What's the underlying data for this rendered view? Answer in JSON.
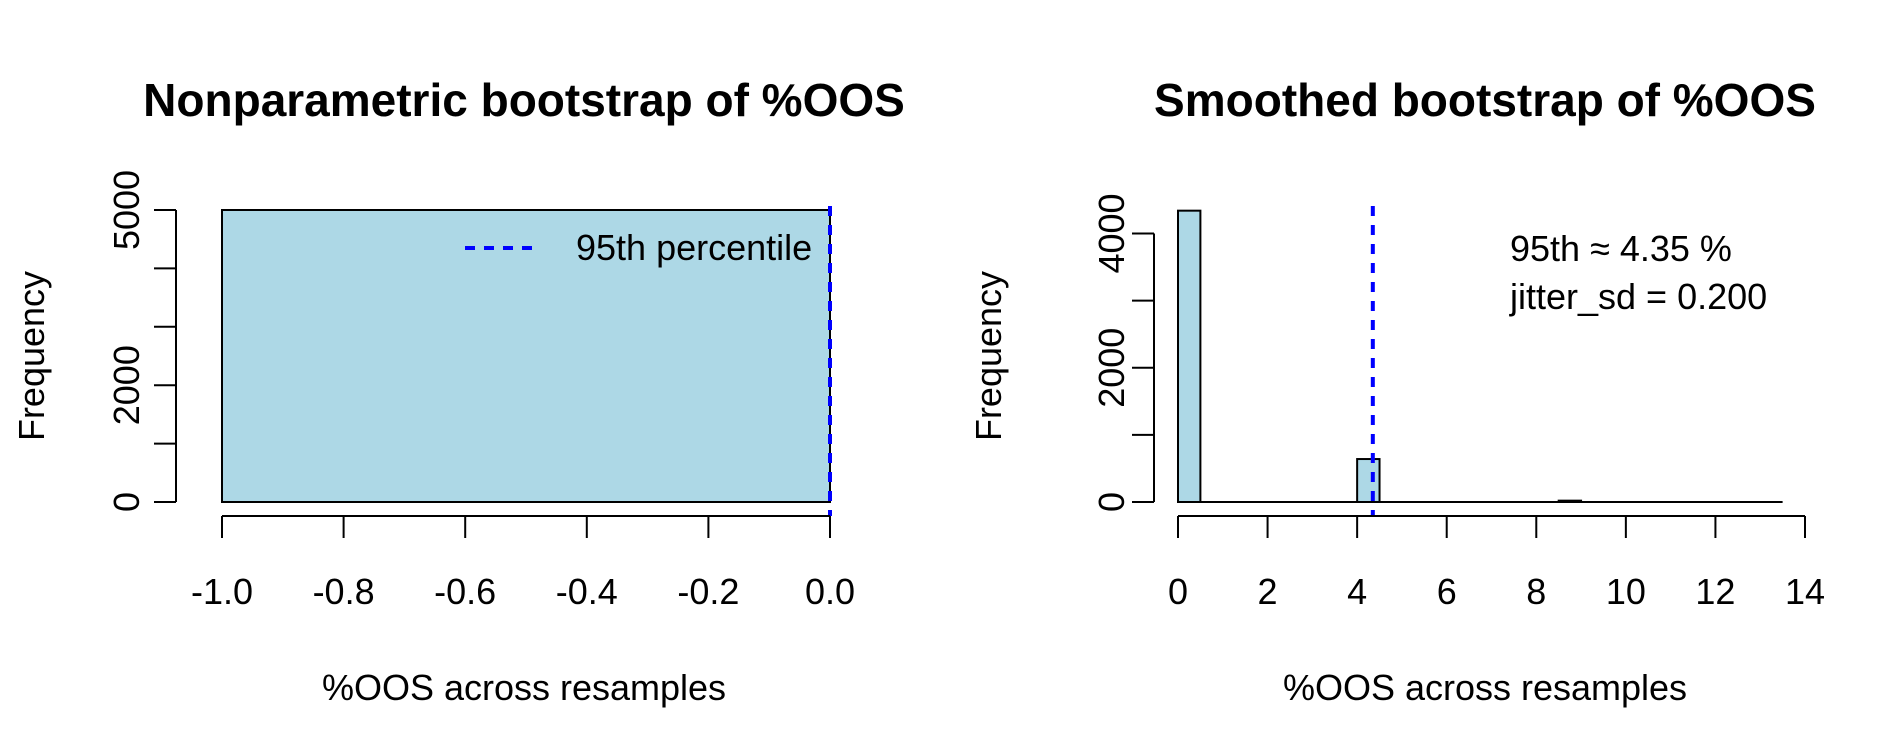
{
  "colors": {
    "bar_fill": "#add8e6",
    "bar_stroke": "#000000",
    "percentile_line": "#0000ff",
    "axis": "#000000"
  },
  "chart_data": [
    {
      "type": "bar",
      "title": "Nonparametric bootstrap of %OOS",
      "xlabel": "%OOS across resamples",
      "ylabel": "Frequency",
      "xlim": [
        -1.0,
        0.0
      ],
      "ylim": [
        0,
        5000
      ],
      "xticks": [
        -1.0,
        -0.8,
        -0.6,
        -0.4,
        -0.2,
        0.0
      ],
      "xtick_labels": [
        "-1.0",
        "-0.8",
        "-0.6",
        "-0.4",
        "-0.2",
        "0.0"
      ],
      "yticks": [
        0,
        1000,
        2000,
        3000,
        4000,
        5000
      ],
      "ytick_labels": [
        "0",
        "",
        "2000",
        "",
        "",
        "5000"
      ],
      "bins": [
        {
          "x0": -1.0,
          "x1": 0.0,
          "count": 5000
        }
      ],
      "percentile_95": 0.0,
      "legend": {
        "label": "95th percentile",
        "position": "top-right"
      },
      "annotations": []
    },
    {
      "type": "bar",
      "title": "Smoothed bootstrap of %OOS",
      "xlabel": "%OOS across resamples",
      "ylabel": "Frequency",
      "xlim": [
        0,
        14
      ],
      "ylim": [
        0,
        4350
      ],
      "xticks": [
        0,
        2,
        4,
        6,
        8,
        10,
        12,
        14
      ],
      "xtick_labels": [
        "0",
        "2",
        "4",
        "6",
        "8",
        "10",
        "12",
        "14"
      ],
      "yticks": [
        0,
        1000,
        2000,
        3000,
        4000
      ],
      "ytick_labels": [
        "0",
        "",
        "2000",
        "",
        "4000"
      ],
      "bins": [
        {
          "x0": 0.0,
          "x1": 0.5,
          "count": 4340
        },
        {
          "x0": 4.0,
          "x1": 4.5,
          "count": 640
        },
        {
          "x0": 8.5,
          "x1": 9.0,
          "count": 20
        }
      ],
      "baseline_range": [
        0.0,
        13.5
      ],
      "percentile_95": 4.35,
      "legend": null,
      "annotations": [
        "95th ≈ 4.35 %",
        "jitter_sd = 0.200"
      ]
    }
  ]
}
